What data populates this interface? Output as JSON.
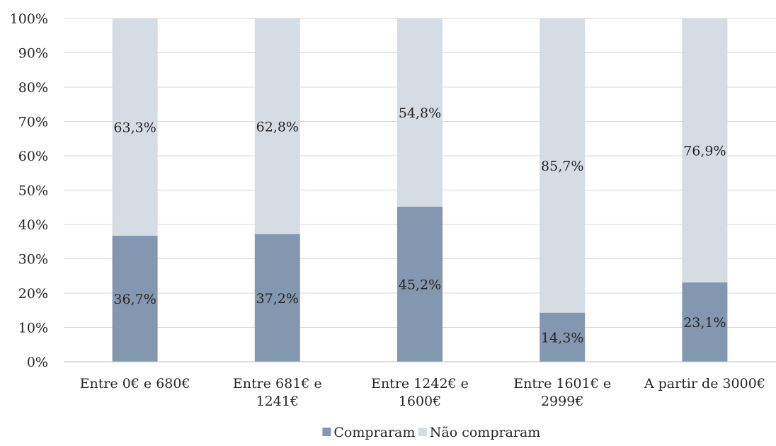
{
  "chart_data": {
    "type": "bar",
    "stacked": "percent",
    "categories": [
      [
        "Entre 0€ e 680€"
      ],
      [
        "Entre 681€ e",
        "1241€"
      ],
      [
        "Entre 1242€ e",
        "1600€"
      ],
      [
        "Entre 1601€ e",
        "2999€"
      ],
      [
        "A partir de 3000€"
      ]
    ],
    "series": [
      {
        "name": "Compraram",
        "color": "#8497b0",
        "values": [
          36.7,
          37.2,
          45.2,
          14.3,
          23.1
        ],
        "labels": [
          "36,7%",
          "37,2%",
          "45,2%",
          "14,3%",
          "23,1%"
        ]
      },
      {
        "name": "Não compraram",
        "color": "#d6dce4",
        "values": [
          63.3,
          62.8,
          54.8,
          85.7,
          76.9
        ],
        "labels": [
          "63,3%",
          "62,8%",
          "54,8%",
          "85,7%",
          "76,9%"
        ]
      }
    ],
    "ylim": [
      0,
      100
    ],
    "y_ticks": [
      "0%",
      "10%",
      "20%",
      "30%",
      "40%",
      "50%",
      "60%",
      "70%",
      "80%",
      "90%",
      "100%"
    ],
    "grid": true,
    "legend_position": "bottom"
  }
}
